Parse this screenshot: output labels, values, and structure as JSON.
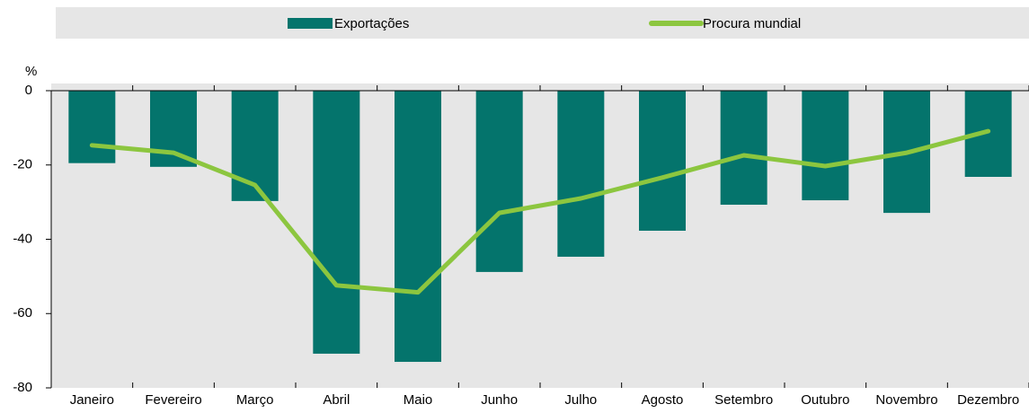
{
  "chart_data": {
    "type": "bar_line",
    "y_label": "%",
    "categories": [
      "Janeiro",
      "Fevereiro",
      "Março",
      "Abril",
      "Maio",
      "Junho",
      "Julho",
      "Agosto",
      "Setembro",
      "Outubro",
      "Novembro",
      "Dezembro"
    ],
    "series": [
      {
        "name": "Exportações",
        "type": "bar",
        "color": "#04746c",
        "values": [
          -19.5,
          -20.5,
          -29.7,
          -70.8,
          -73,
          -48.8,
          -44.7,
          -37.7,
          -30.7,
          -29.5,
          -32.9,
          -23.2
        ]
      },
      {
        "name": "Procura mundial",
        "type": "line",
        "color": "#8cc63f",
        "values": [
          -14.7,
          -16.7,
          -25.4,
          -52.4,
          -54.3,
          -32.9,
          -29,
          -23.4,
          -17.4,
          -20.3,
          -16.7,
          -10.9
        ]
      }
    ],
    "ylim": [
      -80,
      0
    ],
    "yticks": [
      0,
      -20,
      -40,
      -60,
      -80
    ]
  }
}
